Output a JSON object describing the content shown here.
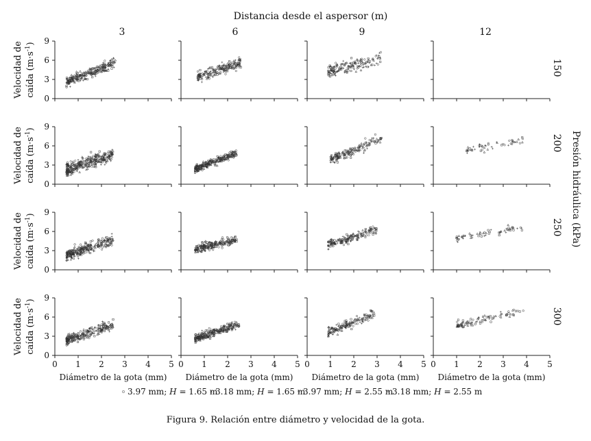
{
  "chart_data": {
    "type": "scatter",
    "column_title": "Distancia desde el aspersor (m)",
    "columns": [
      "3",
      "6",
      "9",
      "12"
    ],
    "row_title": "Presión hidráulica (kPa)",
    "rows": [
      "150",
      "200",
      "250",
      "300"
    ],
    "ylabel_line1": "Velocidad de",
    "ylabel_line2": "caída (m·s",
    "ylabel_sup": "-1",
    "ylabel_end": ")",
    "xlabel": "Diámetro de la gota (mm)",
    "xlim": [
      0,
      5
    ],
    "ylim": [
      0,
      9
    ],
    "xticks": [
      "0",
      "1",
      "2",
      "3",
      "4",
      "5"
    ],
    "yticks": [
      "0",
      "3",
      "6",
      "9"
    ],
    "legend": [
      {
        "marker": "square",
        "pre": "3.97 mm; ",
        "var": "H",
        "post": " = 1.65 m"
      },
      {
        "marker": "triangle",
        "pre": "3.18 mm; ",
        "var": "H",
        "post": " = 1.65 m"
      },
      {
        "marker": "circle",
        "pre": "3.97 mm; ",
        "var": "H",
        "post": " = 2.55 m"
      },
      {
        "marker": "plus",
        "pre": "3.18 mm; ",
        "var": "H",
        "post": " = 2.55 m"
      }
    ],
    "panels": [
      {
        "row": 0,
        "col": 0,
        "empty": false,
        "dmin": 0.5,
        "dmax": 2.6,
        "v0": 2.6,
        "slope": 1.45,
        "spread": 0.7,
        "n": 260
      },
      {
        "row": 0,
        "col": 1,
        "empty": false,
        "dmin": 0.7,
        "dmax": 2.6,
        "v0": 3.1,
        "slope": 1.2,
        "spread": 0.8,
        "n": 200
      },
      {
        "row": 0,
        "col": 2,
        "empty": false,
        "dmin": 0.9,
        "dmax": 3.2,
        "v0": 3.8,
        "slope": 0.95,
        "spread": 0.9,
        "n": 160
      },
      {
        "row": 0,
        "col": 3,
        "empty": true
      },
      {
        "row": 1,
        "col": 0,
        "empty": false,
        "dmin": 0.5,
        "dmax": 2.5,
        "v0": 2.3,
        "slope": 1.2,
        "spread": 0.9,
        "n": 320
      },
      {
        "row": 1,
        "col": 1,
        "empty": false,
        "dmin": 0.6,
        "dmax": 2.4,
        "v0": 2.3,
        "slope": 1.35,
        "spread": 0.5,
        "n": 260
      },
      {
        "row": 1,
        "col": 2,
        "empty": false,
        "dmin": 1.0,
        "dmax": 3.2,
        "v0": 3.0,
        "slope": 1.5,
        "spread": 0.7,
        "n": 170
      },
      {
        "row": 1,
        "col": 3,
        "empty": false,
        "dmin": 1.4,
        "dmax": 3.9,
        "v0": 4.6,
        "slope": 0.75,
        "spread": 0.5,
        "n": 50
      },
      {
        "row": 2,
        "col": 0,
        "empty": false,
        "dmin": 0.5,
        "dmax": 2.5,
        "v0": 2.3,
        "slope": 1.2,
        "spread": 0.8,
        "n": 280
      },
      {
        "row": 2,
        "col": 1,
        "empty": false,
        "dmin": 0.6,
        "dmax": 2.4,
        "v0": 3.2,
        "slope": 0.8,
        "spread": 0.6,
        "n": 220
      },
      {
        "row": 2,
        "col": 2,
        "empty": false,
        "dmin": 0.9,
        "dmax": 3.0,
        "v0": 3.5,
        "slope": 1.1,
        "spread": 0.6,
        "n": 170
      },
      {
        "row": 2,
        "col": 3,
        "empty": false,
        "dmin": 1.0,
        "dmax": 3.9,
        "v0": 4.5,
        "slope": 0.65,
        "spread": 0.5,
        "n": 60
      },
      {
        "row": 3,
        "col": 0,
        "empty": false,
        "dmin": 0.5,
        "dmax": 2.5,
        "v0": 2.4,
        "slope": 1.2,
        "spread": 0.7,
        "n": 240
      },
      {
        "row": 3,
        "col": 1,
        "empty": false,
        "dmin": 0.6,
        "dmax": 2.5,
        "v0": 2.5,
        "slope": 1.2,
        "spread": 0.6,
        "n": 260
      },
      {
        "row": 3,
        "col": 2,
        "empty": false,
        "dmin": 0.9,
        "dmax": 2.9,
        "v0": 3.0,
        "slope": 1.5,
        "spread": 0.7,
        "n": 160
      },
      {
        "row": 3,
        "col": 3,
        "empty": false,
        "dmin": 1.0,
        "dmax": 3.9,
        "v0": 4.3,
        "slope": 0.8,
        "spread": 0.5,
        "n": 90
      }
    ],
    "grid": false,
    "legend_position": "bottom"
  },
  "caption": "Figura 9. Relación entre diámetro y velocidad de la gota."
}
